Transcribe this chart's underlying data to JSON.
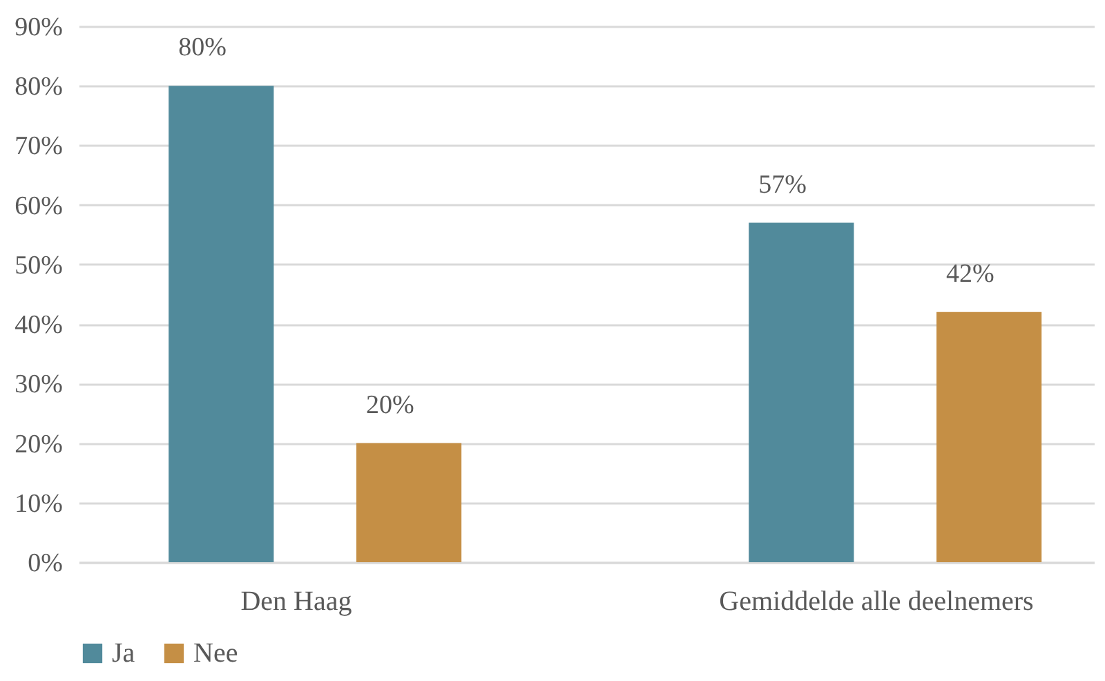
{
  "chart_data": {
    "type": "bar",
    "categories": [
      "Den Haag",
      "Gemiddelde alle deelnemers"
    ],
    "series": [
      {
        "name": "Ja",
        "color": "#518a9b",
        "values": [
          80,
          57
        ],
        "value_labels": [
          "80%",
          "57%"
        ]
      },
      {
        "name": "Nee",
        "color": "#c58f45",
        "values": [
          20,
          42
        ],
        "value_labels": [
          "20%",
          "42%"
        ]
      }
    ],
    "ylim": [
      0,
      90
    ],
    "yticks": [
      {
        "value": 0,
        "label": "0%"
      },
      {
        "value": 10,
        "label": "10%"
      },
      {
        "value": 20,
        "label": "20%"
      },
      {
        "value": 30,
        "label": "30%"
      },
      {
        "value": 40,
        "label": "40%"
      },
      {
        "value": 50,
        "label": "50%"
      },
      {
        "value": 60,
        "label": "60%"
      },
      {
        "value": 70,
        "label": "70%"
      },
      {
        "value": 80,
        "label": "80%"
      },
      {
        "value": 90,
        "label": "90%"
      }
    ],
    "grid": "y",
    "legend": "bottom"
  }
}
